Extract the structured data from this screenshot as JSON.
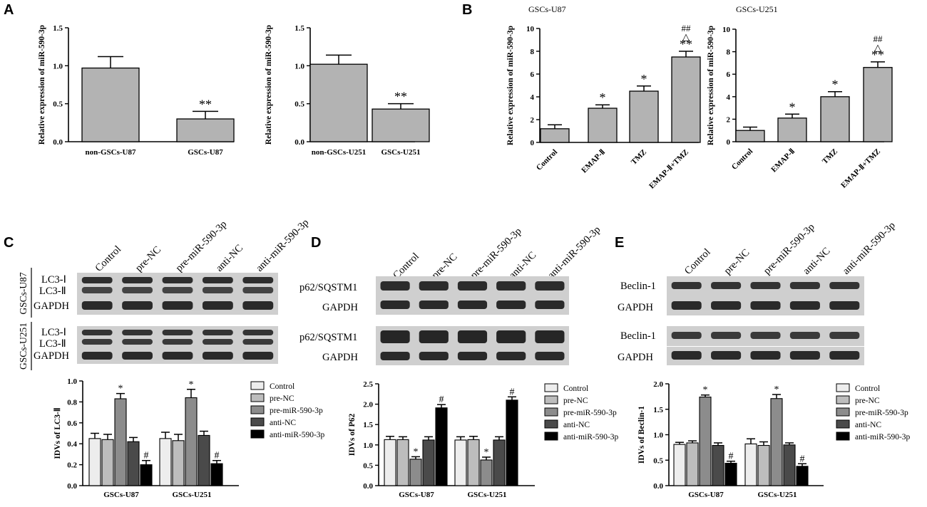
{
  "panel_letters": [
    "A",
    "B",
    "C",
    "D",
    "E"
  ],
  "blot_C": {
    "lanes": [
      "Control",
      "pre-NC",
      "pre-miR-590-3p",
      "anti-NC",
      "anti-miR-590-3p"
    ],
    "groups": [
      "GSCs-U87",
      "GSCs-U251"
    ],
    "row1_label": "LC3-Ⅰ",
    "row2_label": "LC3-Ⅱ",
    "gapdh_label": "GAPDH"
  },
  "blot_D": {
    "lanes": [
      "Control",
      "pre-NC",
      "pre-miR-590-3p",
      "anti-NC",
      "anti-miR-590-3p"
    ],
    "protein_label": "p62/SQSTM1",
    "gapdh_label": "GAPDH"
  },
  "blot_E": {
    "lanes": [
      "Control",
      "pre-NC",
      "pre-miR-590-3p",
      "anti-NC",
      "anti-miR-590-3p"
    ],
    "protein_label": "Beclin-1",
    "gapdh_label": "GAPDH"
  },
  "colors": {
    "bar_gray": "#b3b3b3",
    "series": [
      "#ededed",
      "#bdbdbd",
      "#8c8c8c",
      "#4a4a4a",
      "#000000"
    ],
    "blot_bg": "#cfcfcf",
    "band": "#3a3a3a"
  },
  "chart_data": [
    {
      "id": "A1",
      "type": "bar",
      "categories": [
        "non-GSCs-U87",
        "GSCs-U87"
      ],
      "values": [
        0.97,
        0.3
      ],
      "errors": [
        0.15,
        0.1
      ],
      "marks": [
        "",
        "**"
      ],
      "ylabel": "Relative expression of miR-590-3p",
      "ylim": [
        0,
        1.5
      ],
      "yticks": [
        "0.0",
        "0.5",
        "1.0",
        "1.5"
      ]
    },
    {
      "id": "A2",
      "type": "bar",
      "categories": [
        "non-GSCs-U251",
        "GSCs-U251"
      ],
      "values": [
        1.02,
        0.43
      ],
      "errors": [
        0.12,
        0.07
      ],
      "marks": [
        "",
        "**"
      ],
      "ylabel": "Relative expression of miR-590-3p",
      "ylim": [
        0,
        1.5
      ],
      "yticks": [
        "0.0",
        "0.5",
        "1.0",
        "1.5"
      ]
    },
    {
      "id": "B1",
      "type": "bar",
      "title": "GSCs-U87",
      "categories": [
        "Control",
        "EMAP-Ⅱ",
        "TMZ",
        "EMAP-Ⅱ+TMZ"
      ],
      "values": [
        1.2,
        3.0,
        4.5,
        7.5
      ],
      "errors": [
        0.35,
        0.3,
        0.45,
        0.5
      ],
      "marks": [
        "",
        "*",
        "*",
        "**"
      ],
      "marks2": [
        "",
        "",
        "",
        "△"
      ],
      "marks3": [
        "",
        "",
        "",
        "##"
      ],
      "ylabel": "Relative expression of miR-590-3p",
      "ylim": [
        0,
        10
      ],
      "yticks": [
        "0",
        "2",
        "4",
        "6",
        "8",
        "10"
      ]
    },
    {
      "id": "B2",
      "type": "bar",
      "title": "GSCs-U251",
      "categories": [
        "Control",
        "EMAP-Ⅱ",
        "TMZ",
        "EMAP-Ⅱ+TMZ"
      ],
      "values": [
        1.0,
        2.1,
        4.0,
        6.6
      ],
      "errors": [
        0.3,
        0.35,
        0.45,
        0.5
      ],
      "marks": [
        "",
        "*",
        "*",
        "**"
      ],
      "marks2": [
        "",
        "",
        "",
        "△"
      ],
      "marks3": [
        "",
        "",
        "",
        "##"
      ],
      "ylabel": "Relative expression of miR-590-3p",
      "ylim": [
        0,
        10
      ],
      "yticks": [
        "0",
        "2",
        "4",
        "6",
        "8",
        "10"
      ]
    },
    {
      "id": "C",
      "type": "bar",
      "categories": [
        "GSCs-U87",
        "GSCs-U251"
      ],
      "series": [
        {
          "name": "Control",
          "values": [
            0.45,
            0.45
          ],
          "errors": [
            0.05,
            0.06
          ],
          "marks": [
            "",
            ""
          ]
        },
        {
          "name": "pre-NC",
          "values": [
            0.44,
            0.43
          ],
          "errors": [
            0.05,
            0.06
          ],
          "marks": [
            "",
            ""
          ]
        },
        {
          "name": "pre-miR-590-3p",
          "values": [
            0.83,
            0.84
          ],
          "errors": [
            0.05,
            0.08
          ],
          "marks": [
            "*",
            "*"
          ]
        },
        {
          "name": "anti-NC",
          "values": [
            0.42,
            0.48
          ],
          "errors": [
            0.04,
            0.04
          ],
          "marks": [
            "",
            ""
          ]
        },
        {
          "name": "anti-miR-590-3p",
          "values": [
            0.2,
            0.21
          ],
          "errors": [
            0.04,
            0.03
          ],
          "marks": [
            "#",
            "#"
          ]
        }
      ],
      "ylabel": "IDVs of LC3-Ⅱ",
      "ylim": [
        0,
        1.0
      ],
      "yticks": [
        "0.0",
        "0.2",
        "0.4",
        "0.6",
        "0.8",
        "1.0"
      ]
    },
    {
      "id": "D",
      "type": "bar",
      "categories": [
        "GSCs-U87",
        "GSCs-U251"
      ],
      "series": [
        {
          "name": "Control",
          "values": [
            1.13,
            1.12
          ],
          "errors": [
            0.08,
            0.08
          ],
          "marks": [
            "",
            ""
          ]
        },
        {
          "name": "pre-NC",
          "values": [
            1.13,
            1.13
          ],
          "errors": [
            0.07,
            0.08
          ],
          "marks": [
            "",
            ""
          ]
        },
        {
          "name": "pre-miR-590-3p",
          "values": [
            0.65,
            0.63
          ],
          "errors": [
            0.06,
            0.07
          ],
          "marks": [
            "*",
            "*"
          ]
        },
        {
          "name": "anti-NC",
          "values": [
            1.12,
            1.12
          ],
          "errors": [
            0.08,
            0.08
          ],
          "marks": [
            "",
            ""
          ]
        },
        {
          "name": "anti-miR-590-3p",
          "values": [
            1.91,
            2.1
          ],
          "errors": [
            0.08,
            0.08
          ],
          "marks": [
            "#",
            "#"
          ]
        }
      ],
      "ylabel": "IDVs of  P62",
      "ylim": [
        0,
        2.5
      ],
      "yticks": [
        "0.0",
        "0.5",
        "1.0",
        "1.5",
        "2.0",
        "2.5"
      ]
    },
    {
      "id": "E",
      "type": "bar",
      "categories": [
        "GSCs-U87",
        "GSCs-U251"
      ],
      "series": [
        {
          "name": "Control",
          "values": [
            0.81,
            0.82
          ],
          "errors": [
            0.04,
            0.1
          ],
          "marks": [
            "",
            ""
          ]
        },
        {
          "name": "pre-NC",
          "values": [
            0.84,
            0.79
          ],
          "errors": [
            0.04,
            0.07
          ],
          "marks": [
            "",
            ""
          ]
        },
        {
          "name": "pre-miR-590-3p",
          "values": [
            1.74,
            1.71
          ],
          "errors": [
            0.04,
            0.08
          ],
          "marks": [
            "*",
            "*"
          ]
        },
        {
          "name": "anti-NC",
          "values": [
            0.79,
            0.8
          ],
          "errors": [
            0.05,
            0.04
          ],
          "marks": [
            "",
            ""
          ]
        },
        {
          "name": "anti-miR-590-3p",
          "values": [
            0.44,
            0.38
          ],
          "errors": [
            0.04,
            0.05
          ],
          "marks": [
            "#",
            "#"
          ]
        }
      ],
      "ylabel": "IDVs of Beclin-1",
      "ylim": [
        0,
        2.0
      ],
      "yticks": [
        "0.0",
        "0.5",
        "1.0",
        "1.5",
        "2.0"
      ]
    }
  ]
}
